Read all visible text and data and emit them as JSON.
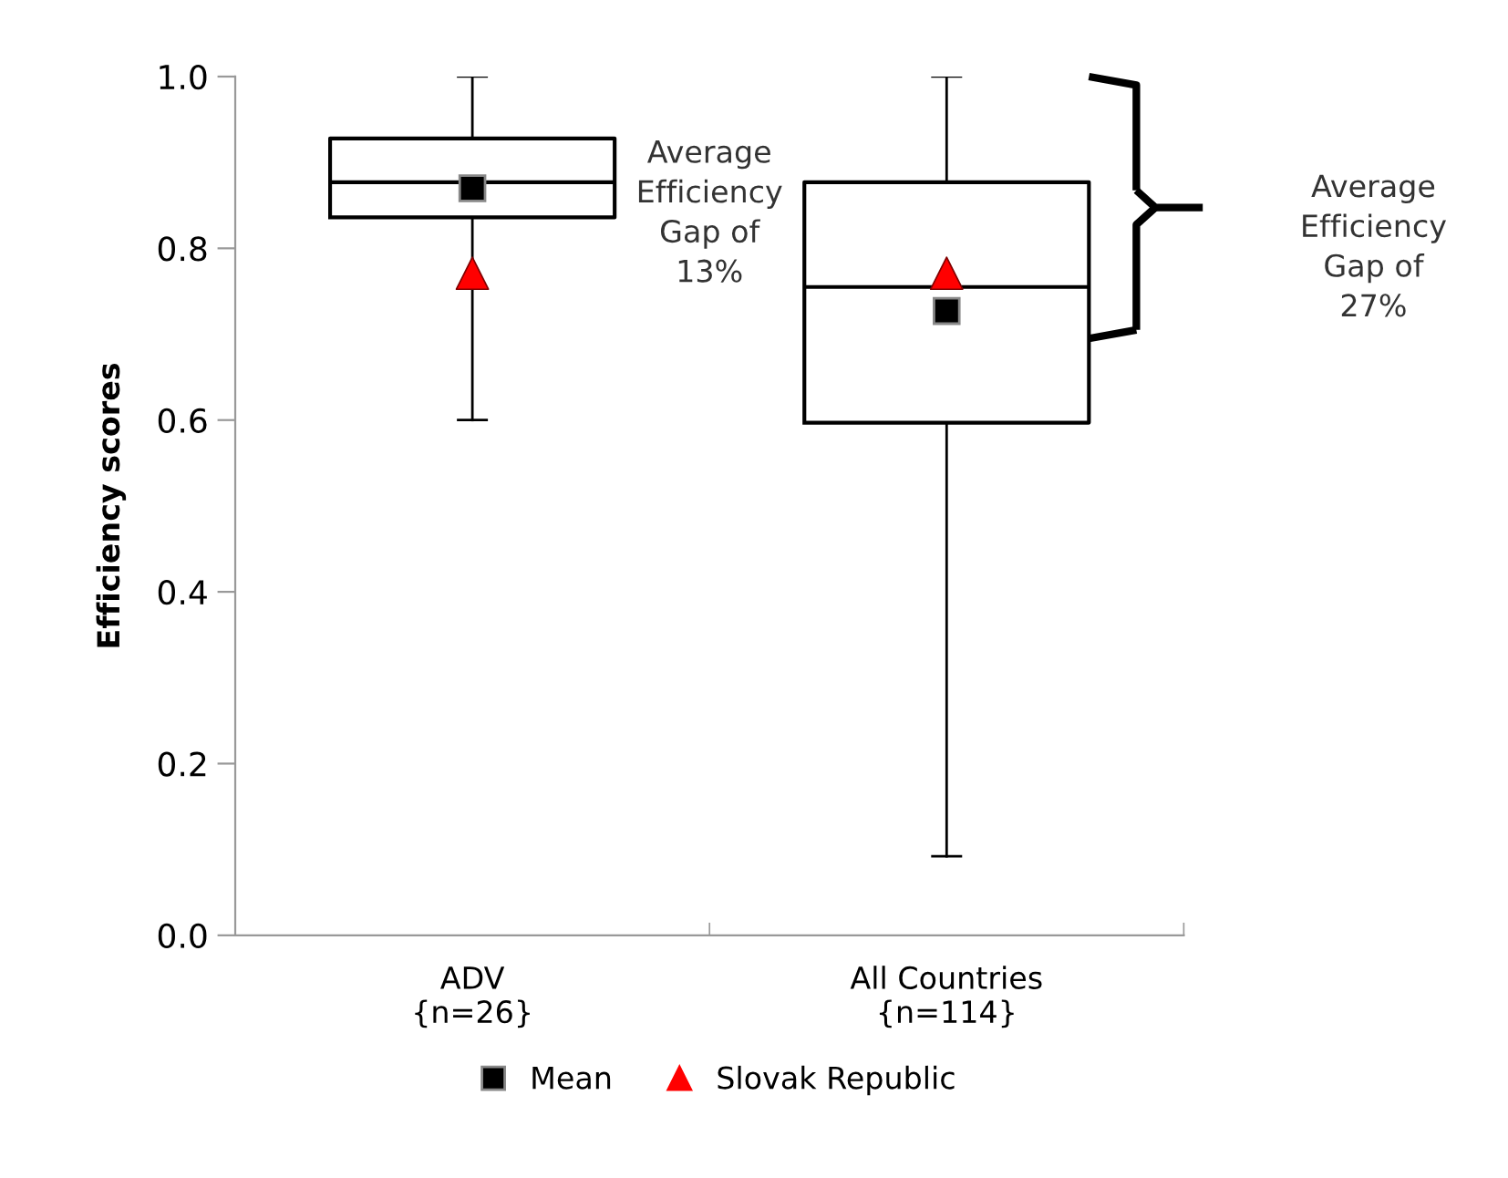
{
  "chart_data": {
    "type": "box",
    "ylabel": "Efficiency scores",
    "categories": [
      "ADV\n{n=26}",
      "All Countries\n{n=114}"
    ],
    "ylim": [
      0.0,
      1.0
    ],
    "yticks": [
      {
        "value": 0.0,
        "label": "0.0"
      },
      {
        "value": 0.2,
        "label": "0.2"
      },
      {
        "value": 0.4,
        "label": "0.4"
      },
      {
        "value": 0.6,
        "label": "0.6"
      },
      {
        "value": 0.8,
        "label": "0.8"
      },
      {
        "value": 1.0,
        "label": "1.0"
      }
    ],
    "series": [
      {
        "name": "Mean",
        "color": "#000000",
        "boxes": [
          {
            "low": 0.6,
            "q1": 0.836,
            "median": 0.877,
            "q3": 0.928,
            "high": 1.0,
            "mean": 0.87
          },
          {
            "low": 0.092,
            "q1": 0.597,
            "median": 0.755,
            "q3": 0.877,
            "high": 1.0,
            "mean": 0.727
          }
        ]
      },
      {
        "type": "scatter",
        "name": "Slovak Republic",
        "color": "#ff0000",
        "marker": "triangle",
        "x": [
          "ADV\n{n=26}",
          "All Countries\n{n=114}"
        ],
        "values": [
          0.771,
          0.771
        ]
      }
    ],
    "annotations": [
      "Average\nEfficiency\nGap of\n13%",
      "Average\nEfficiency\nGap of\n27%"
    ],
    "legend": "bottom",
    "grid": false
  }
}
